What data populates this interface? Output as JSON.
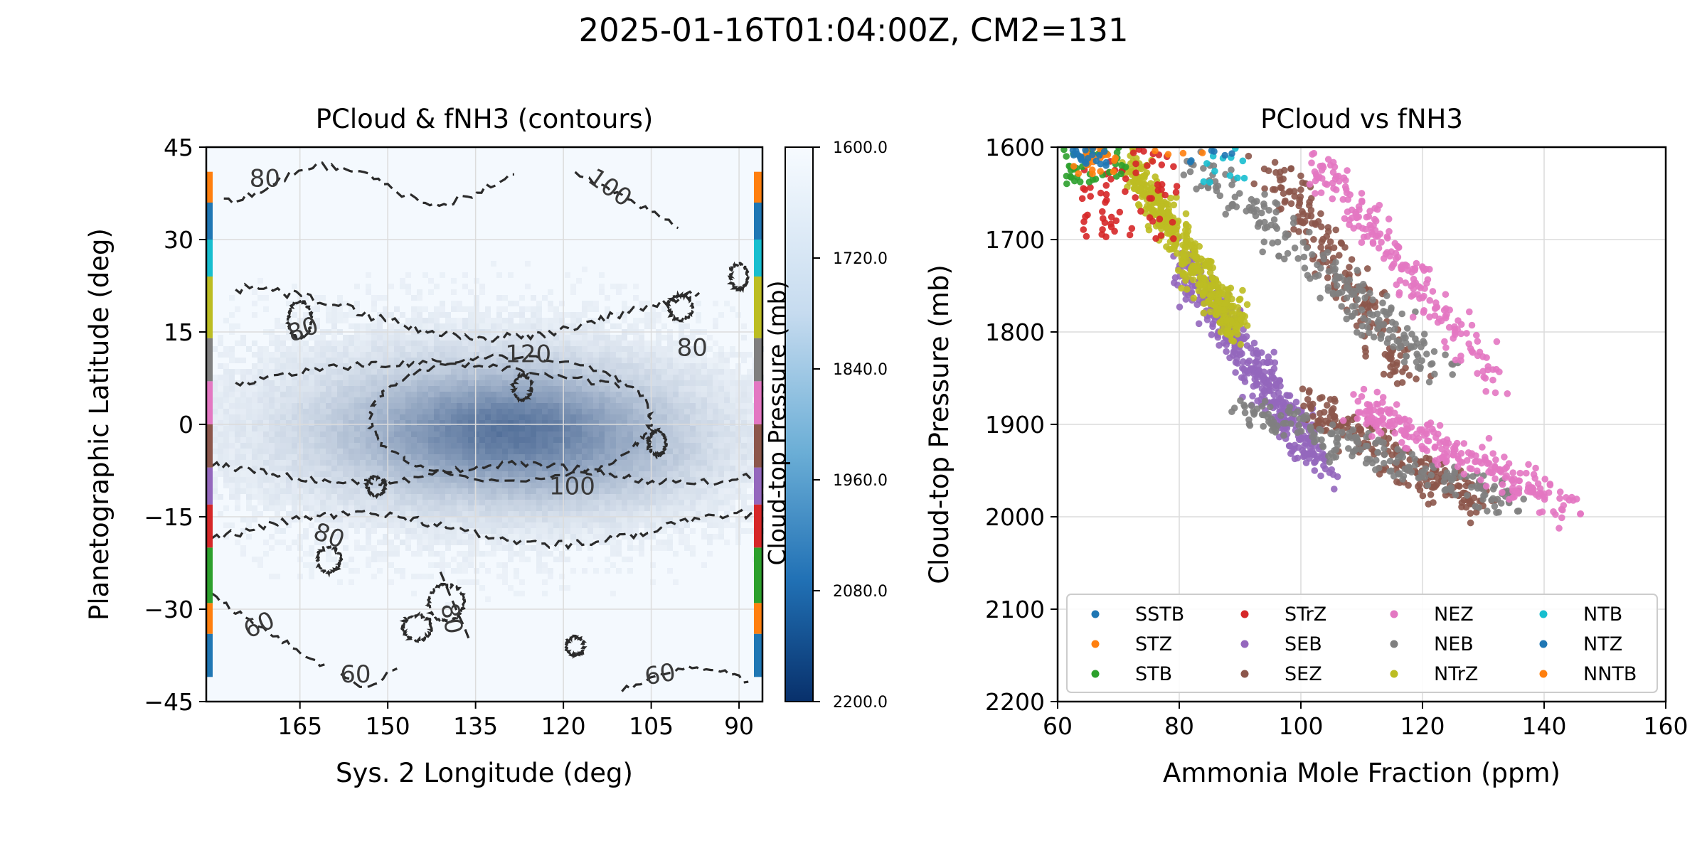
{
  "figure": {
    "suptitle": "2025-01-16T01:04:00Z, CM2=131"
  },
  "colors": {
    "contour": "#2b2b2b",
    "grid": "#dcdcdc",
    "map_low": "#f4f9fe",
    "map_high": "#08306b"
  },
  "chart_data": [
    {
      "type": "heatmap",
      "title": "PCloud & fNH3 (contours)",
      "xlabel": "Sys. 2 Longitude (deg)",
      "ylabel": "Planetographic Latitude (deg)",
      "xlim": [
        181,
        86
      ],
      "ylim": [
        -45,
        45
      ],
      "xticks": [
        165,
        150,
        135,
        120,
        105,
        90
      ],
      "xtick_labels": [
        "165",
        "150",
        "135",
        "120",
        "105",
        "90"
      ],
      "yticks": [
        45,
        30,
        15,
        0,
        -15,
        -30,
        -45
      ],
      "ytick_labels": [
        "45",
        "30",
        "15",
        "0",
        "−15",
        "−30",
        "−45"
      ],
      "grid": true,
      "colorbar": {
        "label": "Cloud-top Pressure (mb)",
        "range": [
          1600,
          2200
        ],
        "ticks": [
          1600,
          1720,
          1840,
          1960,
          2080,
          2200
        ],
        "tick_labels": [
          "1600.0",
          "1720.0",
          "1840.0",
          "1960.0",
          "2080.0",
          "2200.0"
        ]
      },
      "contours": {
        "levels": [
          60,
          80,
          100,
          120
        ],
        "style": "dashed",
        "labels": [
          {
            "text": "80",
            "lon": 171,
            "lat": 40,
            "angle": 0
          },
          {
            "text": "100",
            "lon": 112,
            "lat": 38.5,
            "angle": 35
          },
          {
            "text": "80",
            "lon": 164.5,
            "lat": 15.5,
            "angle": -20
          },
          {
            "text": "120",
            "lon": 126,
            "lat": 11.5,
            "angle": 0
          },
          {
            "text": "80",
            "lon": 98,
            "lat": 12.5,
            "angle": 0
          },
          {
            "text": "100",
            "lon": 118.5,
            "lat": -10,
            "angle": 0
          },
          {
            "text": "80",
            "lon": 160,
            "lat": -18,
            "angle": 20
          },
          {
            "text": "60",
            "lon": 172,
            "lat": -32.5,
            "angle": -25
          },
          {
            "text": "80",
            "lon": 139,
            "lat": -31.5,
            "angle": 80
          },
          {
            "text": "60",
            "lon": 155.5,
            "lat": -40.5,
            "angle": 0
          },
          {
            "text": "60",
            "lon": 103.5,
            "lat": -40.5,
            "angle": -10
          }
        ]
      },
      "band_colors": [
        "#1f77b4",
        "#ff7f0e",
        "#2ca02c",
        "#d62728",
        "#9467bd",
        "#8c564b",
        "#e377c2",
        "#7f7f7f",
        "#bcbd22",
        "#17becf",
        "#1f77b4",
        "#ff7f0e"
      ],
      "band_edges": [
        -41,
        -34,
        -29,
        -20,
        -13,
        -7,
        0,
        7,
        14,
        24,
        30,
        36,
        41
      ]
    },
    {
      "type": "scatter",
      "title": "PCloud vs fNH3",
      "xlabel": "Ammonia Mole Fraction (ppm)",
      "ylabel": "Cloud-top Pressure (mb)",
      "xlim": [
        60,
        160
      ],
      "ylim": [
        2200,
        1600
      ],
      "xticks": [
        60,
        80,
        100,
        120,
        140,
        160
      ],
      "xtick_labels": [
        "60",
        "80",
        "100",
        "120",
        "140",
        "160"
      ],
      "yticks": [
        1600,
        1700,
        1800,
        1900,
        2000,
        2100,
        2200
      ],
      "ytick_labels": [
        "1600",
        "1700",
        "1800",
        "1900",
        "2000",
        "2100",
        "2200"
      ],
      "grid": true,
      "legend_location": "lower-center",
      "series": [
        {
          "name": "SSTB",
          "color": "#1f77b4",
          "x_range": [
            62,
            68
          ],
          "y_range": [
            1600,
            1625
          ],
          "n": 20
        },
        {
          "name": "STZ",
          "color": "#ff7f0e",
          "x_range": [
            62,
            70
          ],
          "y_range": [
            1600,
            1630
          ],
          "n": 25
        },
        {
          "name": "STB",
          "color": "#2ca02c",
          "x_range": [
            60,
            72
          ],
          "y_range": [
            1600,
            1640
          ],
          "n": 40
        },
        {
          "name": "STrZ",
          "color": "#d62728",
          "x_range": [
            64,
            80
          ],
          "y_range": [
            1600,
            1700
          ],
          "n": 70
        },
        {
          "name": "SEB",
          "color": "#9467bd",
          "x_range": [
            80,
            110
          ],
          "y_range": [
            1700,
            1960
          ],
          "n": 420
        },
        {
          "name": "SEZ",
          "color": "#8c564b",
          "x_range": [
            90,
            130
          ],
          "y_range": [
            1610,
            2040
          ],
          "n": 400
        },
        {
          "name": "NEZ",
          "color": "#e377c2",
          "x_range": [
            98,
            144
          ],
          "y_range": [
            1600,
            2030
          ],
          "n": 450
        },
        {
          "name": "NEB",
          "color": "#7f7f7f",
          "x_range": [
            78,
            136
          ],
          "y_range": [
            1610,
            2030
          ],
          "n": 420
        },
        {
          "name": "NTrZ",
          "color": "#bcbd22",
          "x_range": [
            66,
            92
          ],
          "y_range": [
            1600,
            1830
          ],
          "n": 420
        },
        {
          "name": "NTB",
          "color": "#17becf",
          "x_range": [
            84,
            92
          ],
          "y_range": [
            1600,
            1640
          ],
          "n": 12
        },
        {
          "name": "NTZ",
          "color": "#1f77b4",
          "x_range": [
            80,
            90
          ],
          "y_range": [
            1600,
            1620
          ],
          "n": 6
        },
        {
          "name": "NNTB",
          "color": "#ff7f0e",
          "x_range": [
            76,
            84
          ],
          "y_range": [
            1600,
            1610
          ],
          "n": 4
        }
      ]
    }
  ]
}
